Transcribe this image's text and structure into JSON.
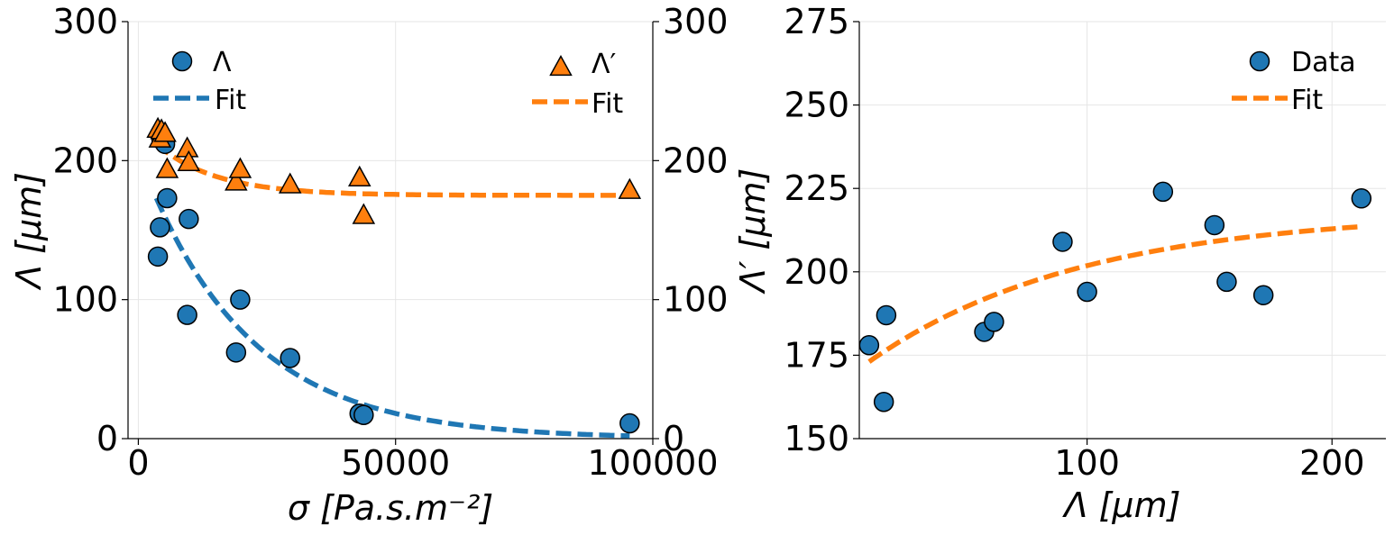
{
  "chart_data": [
    {
      "type": "scatter",
      "xlabel": "σ  [Pa.s.m⁻²]",
      "ylabel": "Λ [μm]",
      "ylabel_right": "Λ′ [μm]",
      "xlim": [
        -2000,
        100000
      ],
      "ylim": [
        0,
        300
      ],
      "ylim_right": [
        0,
        300
      ],
      "xticks": [
        "0",
        "50000",
        "100000"
      ],
      "yticks": [
        "0",
        "100",
        "200",
        "300"
      ],
      "yticks_right": [
        "0",
        "100",
        "200",
        "300"
      ],
      "grid": true,
      "colors": {
        "lambda": "#1f77b4",
        "lambda_prime": "#ff7f0e"
      },
      "legend_left": {
        "placement": "top-left",
        "entries": [
          "Λ",
          "Fit"
        ]
      },
      "legend_right": {
        "placement": "top-right",
        "entries": [
          "Λ′",
          "Fit"
        ]
      },
      "series": [
        {
          "name": "Λ",
          "kind": "points",
          "marker": "circle",
          "axis": "left",
          "x": [
            3800,
            4200,
            4500,
            5200,
            5600,
            9500,
            9800,
            19000,
            19800,
            29500,
            43000,
            43800,
            95500
          ],
          "y": [
            131,
            152,
            215,
            212,
            173,
            89,
            158,
            62,
            100,
            58,
            18,
            17,
            11
          ]
        },
        {
          "name": "Fit",
          "kind": "line",
          "axis": "left",
          "fit": {
            "form": "a*exp(-b*x)",
            "a": 205,
            "b": 4.85e-05,
            "x_range": [
              3500,
              95500
            ]
          }
        },
        {
          "name": "Λ′",
          "kind": "points",
          "marker": "triangle",
          "axis": "right",
          "x": [
            3800,
            4200,
            4500,
            5200,
            5600,
            9500,
            9800,
            19000,
            19800,
            29500,
            43000,
            43800,
            95500
          ],
          "y": [
            223,
            216,
            222,
            220,
            194,
            209,
            199,
            185,
            194,
            183,
            188,
            161,
            179
          ]
        },
        {
          "name": "Fit",
          "kind": "line",
          "axis": "right",
          "fit": {
            "form": "c+a*exp(-b*x)",
            "c": 175,
            "a": 50,
            "b": 8.6e-05,
            "x_range": [
              3500,
              95500
            ]
          }
        }
      ]
    },
    {
      "type": "scatter",
      "xlabel": "Λ [μm]",
      "ylabel": "",
      "xlim": [
        7,
        222
      ],
      "ylim": [
        150,
        275
      ],
      "xticks": [
        "100",
        "200"
      ],
      "yticks": [
        "150",
        "175",
        "200",
        "225",
        "250",
        "275"
      ],
      "grid": true,
      "legend": {
        "placement": "top-right",
        "entries": [
          "Data",
          "Fit"
        ]
      },
      "series": [
        {
          "name": "Data",
          "kind": "points",
          "marker": "circle",
          "color": "#1f77b4",
          "x": [
            11,
            17,
            18,
            58,
            62,
            90,
            100,
            131,
            152,
            157,
            172,
            212
          ],
          "y": [
            178,
            161,
            187,
            182,
            185,
            209,
            194,
            224,
            214,
            197,
            193,
            222
          ]
        },
        {
          "name": "Fit",
          "kind": "line",
          "color": "#ff7f0e",
          "fit": {
            "form": "c-a*exp(-b*x)",
            "c": 218,
            "a": 51,
            "b": 0.0115,
            "x_range": [
              11,
              212
            ]
          }
        }
      ]
    }
  ]
}
